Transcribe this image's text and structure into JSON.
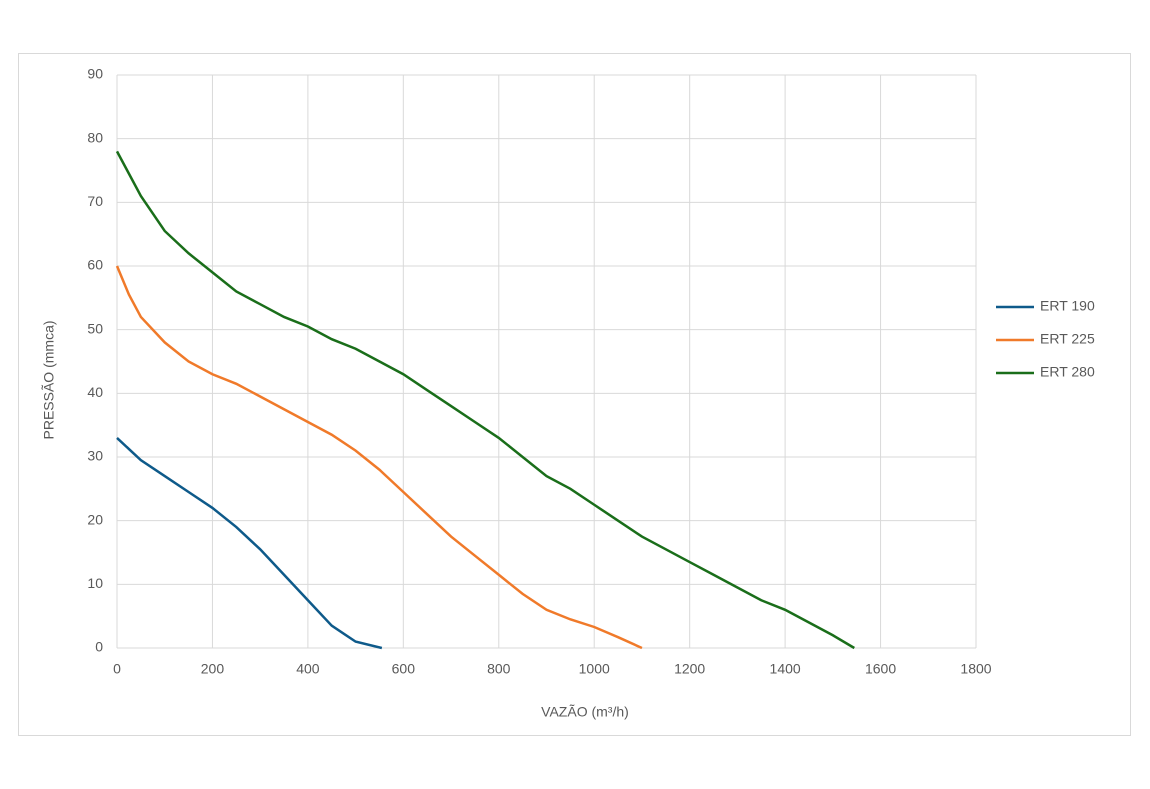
{
  "chart_data": {
    "type": "line",
    "xlabel": "VAZÃO (m³/h)",
    "ylabel": "PRESSÃO (mmca)",
    "xlim": [
      0,
      1800
    ],
    "xticks": [
      0,
      200,
      400,
      600,
      800,
      1000,
      1200,
      1400,
      1600,
      1800
    ],
    "ylim": [
      0,
      90
    ],
    "yticks": [
      0,
      10,
      20,
      30,
      40,
      50,
      60,
      70,
      80,
      90
    ],
    "grid": true,
    "legend": "right",
    "series": [
      {
        "name": "ERT 190",
        "color": "#0e5a8a",
        "x": [
          0,
          50,
          100,
          150,
          200,
          250,
          300,
          350,
          400,
          450,
          500,
          555
        ],
        "values": [
          33,
          29.5,
          27,
          24.5,
          22,
          19,
          15.5,
          11.5,
          7.5,
          3.5,
          1,
          0
        ]
      },
      {
        "name": "ERT 225",
        "color": "#f07a2a",
        "x": [
          0,
          25,
          50,
          100,
          150,
          200,
          250,
          300,
          350,
          400,
          450,
          500,
          550,
          600,
          650,
          700,
          750,
          800,
          850,
          900,
          950,
          1000,
          1050,
          1100
        ],
        "values": [
          60,
          55.5,
          52,
          48,
          45,
          43,
          41.5,
          39.5,
          37.5,
          35.5,
          33.5,
          31,
          28,
          24.5,
          21,
          17.5,
          14.5,
          11.5,
          8.5,
          6,
          4.5,
          3.3,
          1.7,
          0
        ]
      },
      {
        "name": "ERT 280",
        "color": "#1a6e1a",
        "x": [
          0,
          50,
          100,
          150,
          200,
          250,
          300,
          350,
          400,
          450,
          500,
          550,
          600,
          650,
          700,
          750,
          800,
          850,
          900,
          950,
          1000,
          1050,
          1100,
          1150,
          1200,
          1250,
          1300,
          1350,
          1400,
          1450,
          1500,
          1545
        ],
        "values": [
          78,
          71,
          65.5,
          62,
          59,
          56,
          54,
          52,
          50.5,
          48.5,
          47,
          45,
          43,
          40.5,
          38,
          35.5,
          33,
          30,
          27,
          25,
          22.5,
          20,
          17.5,
          15.5,
          13.5,
          11.5,
          9.5,
          7.5,
          6,
          4,
          2,
          0
        ]
      }
    ]
  }
}
